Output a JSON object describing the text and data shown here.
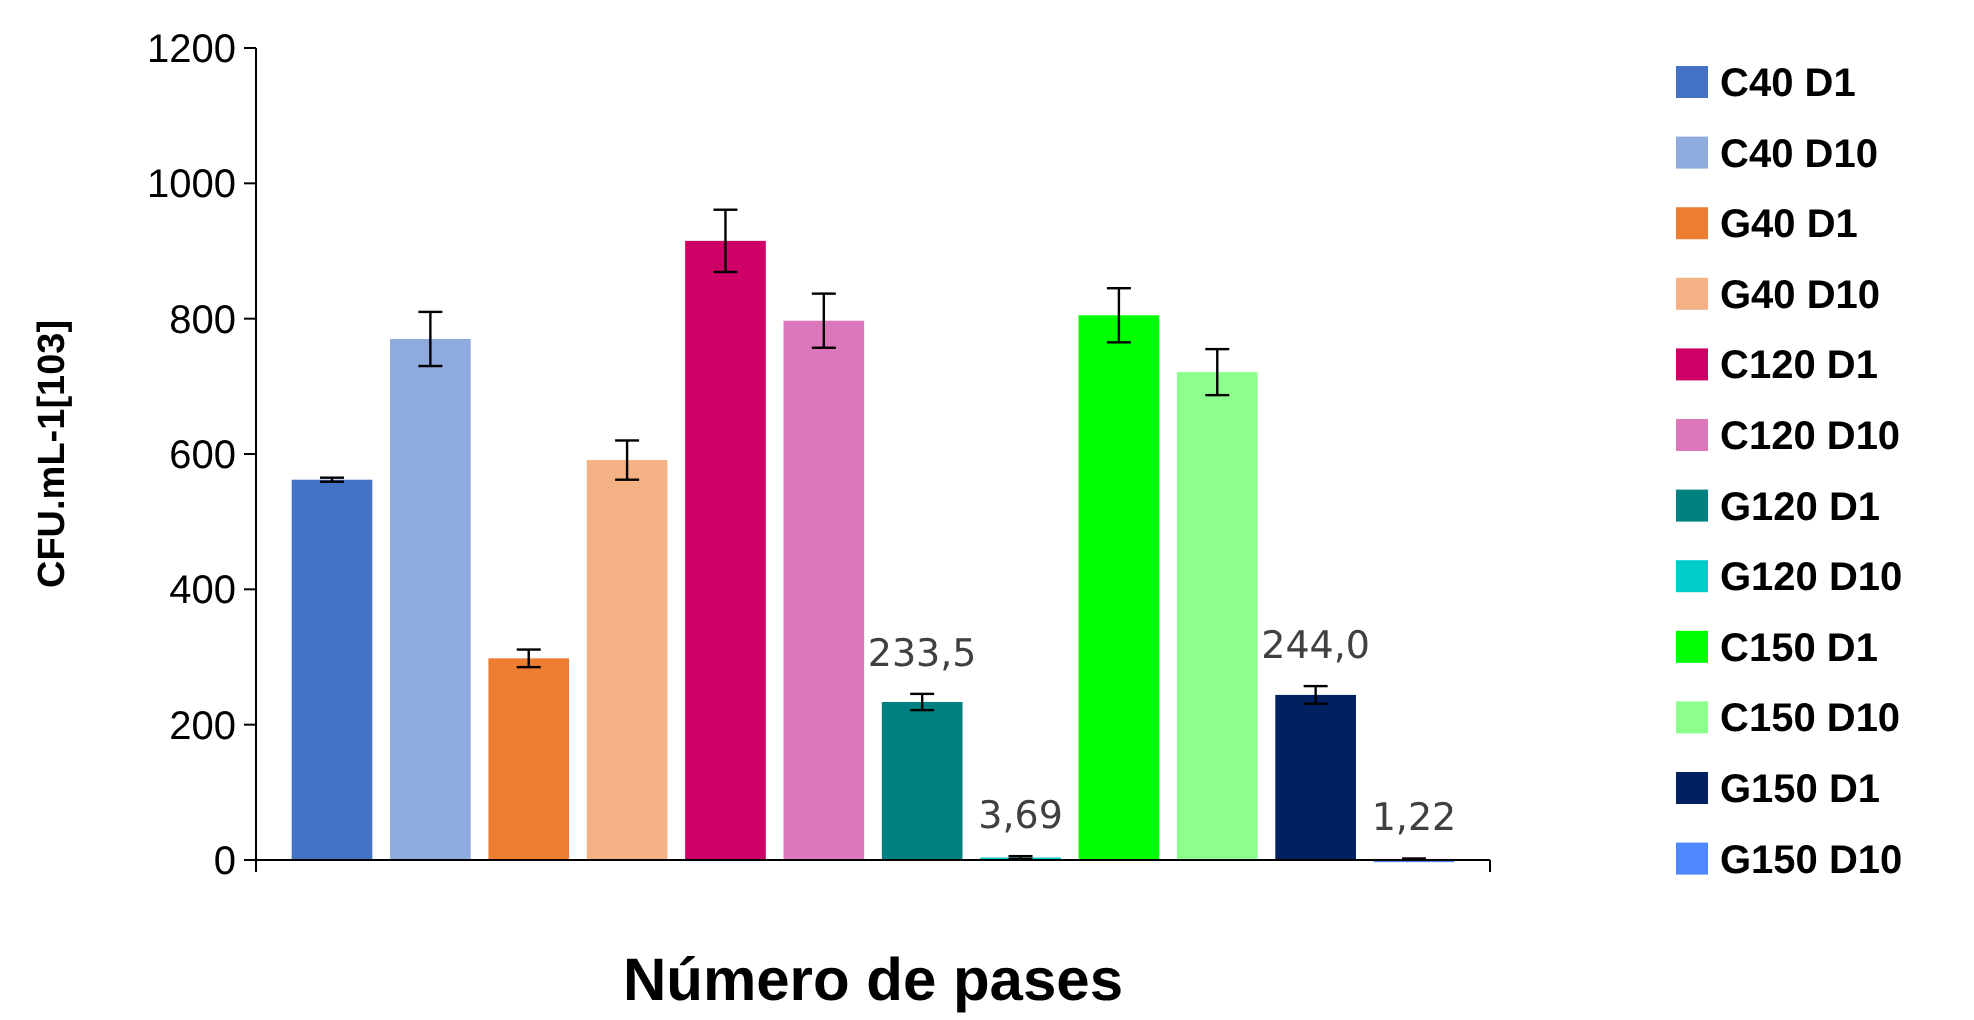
{
  "chart_data": {
    "type": "bar",
    "xlabel": "Número de pases",
    "ylabel": "CFU.mL-1[103]",
    "categories": [
      null
    ],
    "ylim": [
      0,
      1200
    ],
    "yticks": [
      0,
      200,
      400,
      600,
      800,
      1000,
      1200
    ],
    "grid": false,
    "legend": "right",
    "series": [
      {
        "name": "C40 D1",
        "color": "#4472c4",
        "values": [
          562
        ],
        "errors": [
          3
        ]
      },
      {
        "name": "C40 D10",
        "color": "#8faadc",
        "values": [
          770
        ],
        "errors": [
          40
        ]
      },
      {
        "name": "G40 D1",
        "color": "#ed7d31",
        "values": [
          298
        ],
        "errors": [
          13
        ]
      },
      {
        "name": "G40 D10",
        "color": "#f4b183",
        "values": [
          591
        ],
        "errors": [
          29
        ]
      },
      {
        "name": "C120 D1",
        "color": "#cc0066",
        "values": [
          915
        ],
        "errors": [
          46
        ]
      },
      {
        "name": "C120 D10",
        "color": "#dd77bb",
        "values": [
          797
        ],
        "errors": [
          40
        ]
      },
      {
        "name": "G120 D1",
        "color": "#008080",
        "values": [
          233.5
        ],
        "errors": [
          12
        ],
        "value_labels": [
          "233,5"
        ]
      },
      {
        "name": "G120 D10",
        "color": "#00cccc",
        "values": [
          3.69
        ],
        "errors": [
          2
        ],
        "value_labels": [
          "3,69"
        ]
      },
      {
        "name": "C150 D1",
        "color": "#00ff00",
        "values": [
          805
        ],
        "errors": [
          40
        ]
      },
      {
        "name": "C150 D10",
        "color": "#8cff8c",
        "values": [
          721
        ],
        "errors": [
          34
        ]
      },
      {
        "name": "G150 D1",
        "color": "#002060",
        "values": [
          244.0
        ],
        "errors": [
          13
        ],
        "value_labels": [
          "244,0"
        ]
      },
      {
        "name": "G150 D10",
        "color": "#4d88ff",
        "values": [
          1.22
        ],
        "errors": [
          1
        ],
        "value_labels": [
          "1,22"
        ]
      }
    ]
  }
}
